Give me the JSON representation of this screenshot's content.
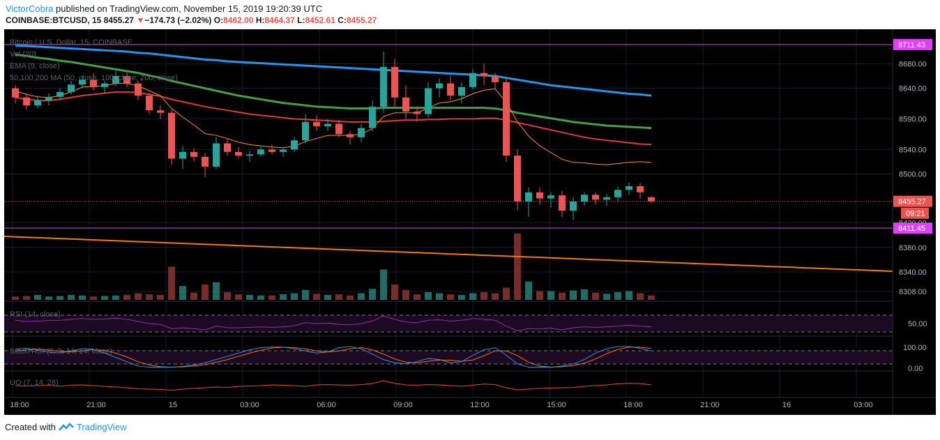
{
  "header": {
    "author": "VictorCobra",
    "published": "published on TradingView.com, November 15, 2019 19:20:39 UTC",
    "symbol": "COINBASE:BTCUSD, 15",
    "last": "8455.27",
    "change_arrow": "▼",
    "change": "−174.73 (−2.02%)",
    "o_label": "O:",
    "o": "8462.00",
    "h_label": "H:",
    "h": "8464.37",
    "l_label": "L:",
    "l": "8452.61",
    "c_label": "C:",
    "c": "8455.27"
  },
  "legend": {
    "main": "Bitcoin / U.S. Dollar, 15, COINBASE",
    "vol": "Vol (20)",
    "ema": "EMA (9, close)",
    "ma": "50,100,200 MA (50, close, 100, close, 200, close)",
    "rsi": "RSI (14, close)",
    "stoch": "Stoch RSI (3, 3, 14, 14, close)",
    "uo": "UO (7, 14, 28)"
  },
  "price_axis": {
    "ticks": [
      "8680.00",
      "8640.00",
      "8590.00",
      "8540.00",
      "8500.00",
      "8420.00",
      "8380.00",
      "8340.00",
      "8308.00"
    ],
    "tick_values": [
      8680,
      8640,
      8590,
      8540,
      8500,
      8420,
      8380,
      8340,
      8308
    ],
    "level_high_label": "8711.43",
    "level_high": 8711.43,
    "level_low_label": "8411.45",
    "level_low": 8411.45,
    "last_price_label": "8455.27",
    "last_price": 8455.27,
    "countdown": "09:21"
  },
  "indicator_axis": {
    "rsi_tick": "50.00",
    "stoch_ticks": [
      "100.00",
      "0.00"
    ]
  },
  "time_axis": [
    "18:00",
    "21:00",
    "15",
    "03:00",
    "06:00",
    "09:00",
    "12:00",
    "15:00",
    "18:00",
    "21:00",
    "16",
    "03:00"
  ],
  "footer": {
    "created_with": "Created with",
    "brand": "TradingView"
  },
  "colors": {
    "background": "#000000",
    "up": "#26a69a",
    "down": "#ef5350",
    "ema": "#ff9800",
    "ma50": "#e53935",
    "ma100": "#43a047",
    "ma200": "#2196f3",
    "trendline": "#f57c00",
    "level": "#e040fb",
    "rsi": "#9c27b0",
    "stoch_k": "#2196f3",
    "stoch_d": "#ff6d00",
    "uo": "#f44336"
  },
  "chart_data": {
    "type": "candlestick",
    "title": "Bitcoin / U.S. Dollar, 15, COINBASE",
    "ylim": [
      8300,
      8725
    ],
    "candles_ohlc": [
      [
        8640,
        8645,
        8615,
        8625
      ],
      [
        8625,
        8632,
        8605,
        8612
      ],
      [
        8612,
        8628,
        8608,
        8620
      ],
      [
        8620,
        8632,
        8612,
        8626
      ],
      [
        8626,
        8640,
        8620,
        8634
      ],
      [
        8634,
        8652,
        8630,
        8646
      ],
      [
        8646,
        8660,
        8640,
        8654
      ],
      [
        8654,
        8664,
        8636,
        8642
      ],
      [
        8642,
        8652,
        8632,
        8648
      ],
      [
        8648,
        8668,
        8644,
        8660
      ],
      [
        8660,
        8666,
        8642,
        8648
      ],
      [
        8648,
        8652,
        8620,
        8628
      ],
      [
        8628,
        8632,
        8598,
        8604
      ],
      [
        8604,
        8612,
        8590,
        8600
      ],
      [
        8600,
        8605,
        8515,
        8525
      ],
      [
        8525,
        8545,
        8508,
        8536
      ],
      [
        8536,
        8542,
        8520,
        8528
      ],
      [
        8528,
        8534,
        8495,
        8512
      ],
      [
        8512,
        8560,
        8508,
        8550
      ],
      [
        8550,
        8558,
        8530,
        8536
      ],
      [
        8536,
        8544,
        8526,
        8530
      ],
      [
        8530,
        8538,
        8520,
        8532
      ],
      [
        8532,
        8545,
        8528,
        8540
      ],
      [
        8540,
        8548,
        8532,
        8536
      ],
      [
        8536,
        8544,
        8528,
        8540
      ],
      [
        8540,
        8560,
        8536,
        8555
      ],
      [
        8555,
        8598,
        8550,
        8585
      ],
      [
        8585,
        8596,
        8570,
        8578
      ],
      [
        8578,
        8590,
        8570,
        8582
      ],
      [
        8582,
        8588,
        8560,
        8565
      ],
      [
        8565,
        8570,
        8548,
        8560
      ],
      [
        8560,
        8582,
        8552,
        8575
      ],
      [
        8575,
        8620,
        8570,
        8610
      ],
      [
        8610,
        8700,
        8600,
        8675
      ],
      [
        8675,
        8688,
        8610,
        8625
      ],
      [
        8625,
        8645,
        8590,
        8602
      ],
      [
        8602,
        8610,
        8585,
        8598
      ],
      [
        8598,
        8650,
        8592,
        8640
      ],
      [
        8640,
        8656,
        8625,
        8648
      ],
      [
        8648,
        8660,
        8620,
        8628
      ],
      [
        8628,
        8650,
        8615,
        8642
      ],
      [
        8642,
        8672,
        8638,
        8665
      ],
      [
        8665,
        8680,
        8645,
        8660
      ],
      [
        8660,
        8665,
        8640,
        8650
      ],
      [
        8650,
        8655,
        8520,
        8530
      ],
      [
        8530,
        8540,
        8440,
        8455
      ],
      [
        8455,
        8478,
        8430,
        8470
      ],
      [
        8470,
        8478,
        8450,
        8460
      ],
      [
        8460,
        8470,
        8445,
        8465
      ],
      [
        8465,
        8472,
        8430,
        8440
      ],
      [
        8440,
        8462,
        8425,
        8455
      ],
      [
        8455,
        8470,
        8448,
        8466
      ],
      [
        8466,
        8470,
        8450,
        8458
      ],
      [
        8458,
        8468,
        8448,
        8462
      ],
      [
        8462,
        8480,
        8455,
        8474
      ],
      [
        8474,
        8486,
        8465,
        8480
      ],
      [
        8480,
        8485,
        8460,
        8470
      ],
      [
        8462,
        8464.37,
        8452.61,
        8455.27
      ]
    ],
    "ema9": [
      8636,
      8630,
      8626,
      8625,
      8628,
      8634,
      8642,
      8643,
      8644,
      8648,
      8648,
      8644,
      8636,
      8628,
      8607,
      8593,
      8580,
      8566,
      8563,
      8558,
      8552,
      8548,
      8546,
      8544,
      8543,
      8545,
      8553,
      8558,
      8563,
      8563,
      8563,
      8565,
      8574,
      8594,
      8600,
      8600,
      8600,
      8608,
      8616,
      8618,
      8623,
      8631,
      8637,
      8639,
      8617,
      8585,
      8562,
      8546,
      8535,
      8524,
      8519,
      8518,
      8516,
      8515,
      8517,
      8519,
      8520,
      8519
    ],
    "ma50": [
      8625,
      8622,
      8620,
      8620,
      8622,
      8625,
      8628,
      8630,
      8632,
      8634,
      8634,
      8633,
      8630,
      8627,
      8622,
      8618,
      8614,
      8610,
      8607,
      8604,
      8601,
      8598,
      8596,
      8594,
      8592,
      8590,
      8589,
      8588,
      8587,
      8586,
      8585,
      8585,
      8585,
      8586,
      8587,
      8588,
      8588,
      8589,
      8589,
      8590,
      8590,
      8590,
      8591,
      8591,
      8588,
      8584,
      8580,
      8576,
      8572,
      8568,
      8564,
      8560,
      8557,
      8555,
      8553,
      8551,
      8549,
      8548
    ],
    "ma100": [
      8695,
      8693,
      8690,
      8688,
      8685,
      8683,
      8680,
      8677,
      8674,
      8671,
      8668,
      8665,
      8661,
      8657,
      8652,
      8648,
      8644,
      8640,
      8636,
      8632,
      8628,
      8625,
      8622,
      8619,
      8616,
      8614,
      8612,
      8610,
      8609,
      8608,
      8607,
      8607,
      8607,
      8608,
      8608,
      8608,
      8608,
      8608,
      8608,
      8608,
      8608,
      8608,
      8608,
      8607,
      8604,
      8600,
      8597,
      8594,
      8591,
      8588,
      8585,
      8583,
      8581,
      8579,
      8578,
      8577,
      8576,
      8575
    ],
    "ma200": [
      8710,
      8709,
      8708,
      8707,
      8706,
      8705,
      8704,
      8703,
      8702,
      8701,
      8700,
      8698,
      8697,
      8695,
      8693,
      8691,
      8689,
      8687,
      8686,
      8684,
      8683,
      8682,
      8681,
      8680,
      8679,
      8678,
      8677,
      8676,
      8675,
      8674,
      8673,
      8672,
      8671,
      8670,
      8669,
      8668,
      8667,
      8666,
      8665,
      8664,
      8663,
      8662,
      8661,
      8660,
      8657,
      8654,
      8651,
      8648,
      8645,
      8643,
      8641,
      8639,
      8637,
      8635,
      8633,
      8631,
      8630,
      8628
    ],
    "volume": [
      0.6,
      0.7,
      0.9,
      0.6,
      0.7,
      0.9,
      0.8,
      0.6,
      0.7,
      0.8,
      0.9,
      1.2,
      1.0,
      0.9,
      6.0,
      2.5,
      1.3,
      2.8,
      3.2,
      1.4,
      1.0,
      0.9,
      0.8,
      0.8,
      1.0,
      1.2,
      1.8,
      1.1,
      0.9,
      1.0,
      0.8,
      1.2,
      2.0,
      5.5,
      2.8,
      1.8,
      1.0,
      1.4,
      1.2,
      1.0,
      0.9,
      1.2,
      1.4,
      1.2,
      2.2,
      12.0,
      3.3,
      1.6,
      1.6,
      1.3,
      1.7,
      1.9,
      1.3,
      1.1,
      1.4,
      1.6,
      1.2,
      0.8
    ],
    "rsi": [
      58,
      55,
      56,
      57,
      58,
      60,
      62,
      60,
      61,
      63,
      60,
      55,
      50,
      48,
      38,
      40,
      38,
      35,
      44,
      40,
      40,
      41,
      42,
      41,
      42,
      45,
      52,
      50,
      51,
      48,
      47,
      50,
      56,
      68,
      60,
      54,
      52,
      58,
      59,
      56,
      58,
      62,
      60,
      58,
      44,
      33,
      38,
      37,
      39,
      35,
      40,
      42,
      41,
      42,
      44,
      46,
      44,
      42
    ],
    "stoch_k": [
      88,
      92,
      84,
      74,
      70,
      80,
      90,
      88,
      70,
      50,
      30,
      10,
      5,
      5,
      5,
      8,
      15,
      25,
      40,
      55,
      70,
      85,
      95,
      98,
      98,
      90,
      80,
      70,
      75,
      95,
      100,
      90,
      65,
      40,
      25,
      20,
      30,
      45,
      40,
      25,
      30,
      60,
      85,
      95,
      60,
      20,
      5,
      5,
      5,
      10,
      20,
      40,
      70,
      90,
      100,
      100,
      92,
      80
    ],
    "stoch_d": [
      80,
      85,
      88,
      84,
      78,
      76,
      80,
      86,
      82,
      70,
      52,
      30,
      15,
      7,
      5,
      6,
      10,
      16,
      27,
      40,
      55,
      70,
      83,
      93,
      97,
      95,
      89,
      80,
      75,
      80,
      90,
      95,
      85,
      65,
      43,
      28,
      25,
      32,
      38,
      37,
      32,
      38,
      58,
      80,
      80,
      58,
      28,
      10,
      5,
      7,
      12,
      23,
      43,
      67,
      87,
      97,
      97,
      91
    ],
    "uo": [
      0.55,
      0.52,
      0.55,
      0.56,
      0.5,
      0.58,
      0.6,
      0.55,
      0.5,
      0.45,
      0.4,
      0.32,
      0.3,
      0.28,
      0.22,
      0.3,
      0.35,
      0.4,
      0.45,
      0.42,
      0.5,
      0.52,
      0.55,
      0.6,
      0.58,
      0.55,
      0.5,
      0.6,
      0.62,
      0.6,
      0.58,
      0.62,
      0.7,
      0.9,
      0.72,
      0.6,
      0.58,
      0.62,
      0.6,
      0.55,
      0.5,
      0.58,
      0.66,
      0.62,
      0.4,
      0.25,
      0.3,
      0.35,
      0.38,
      0.4,
      0.42,
      0.5,
      0.55,
      0.6,
      0.68,
      0.72,
      0.7,
      0.6
    ],
    "trendline": [
      [
        0,
        8398
      ],
      [
        1,
        8341
      ]
    ]
  }
}
